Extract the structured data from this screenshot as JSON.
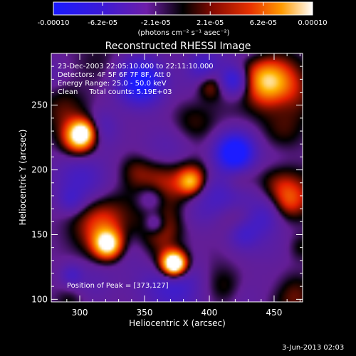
{
  "chart_data": {
    "type": "heatmap",
    "title": "Reconstructed RHESSI Image",
    "xlabel": "Heliocentric X (arcsec)",
    "ylabel": "Heliocentric Y (arcsec)",
    "xlim": [
      278,
      472
    ],
    "ylim": [
      98,
      290
    ],
    "x_ticks": [
      300,
      350,
      400,
      450
    ],
    "y_ticks": [
      100,
      150,
      200,
      250
    ],
    "colorbar": {
      "label": "(photons cm⁻² s⁻¹ asec⁻²)",
      "range": [
        -0.0001,
        0.0001
      ],
      "ticks": [
        {
          "value": -0.0001,
          "label": "-0.00010"
        },
        {
          "value": -6.2e-05,
          "label": "-6.2e-05"
        },
        {
          "value": -2.1e-05,
          "label": "-2.1e-05"
        },
        {
          "value": 2.1e-05,
          "label": "2.1e-05"
        },
        {
          "value": 6.2e-05,
          "label": "6.2e-05"
        },
        {
          "value": 0.0001,
          "label": "0.00010"
        }
      ]
    },
    "annotations": [
      "23-Dec-2003 22:05:10.000 to 22:11:10.000",
      "Detectors: 4F 5F 6F 7F 8F, Att 0",
      "Energy Range: 25.0 - 50.0 keV",
      "Clean     Total counts: 5.19E+03"
    ],
    "peak_label": "Position of Peak = [373,127]",
    "peak": {
      "x": 373,
      "y": 127
    },
    "grid": false
  },
  "footer": {
    "date": "3-Jun-2013 02:03"
  }
}
